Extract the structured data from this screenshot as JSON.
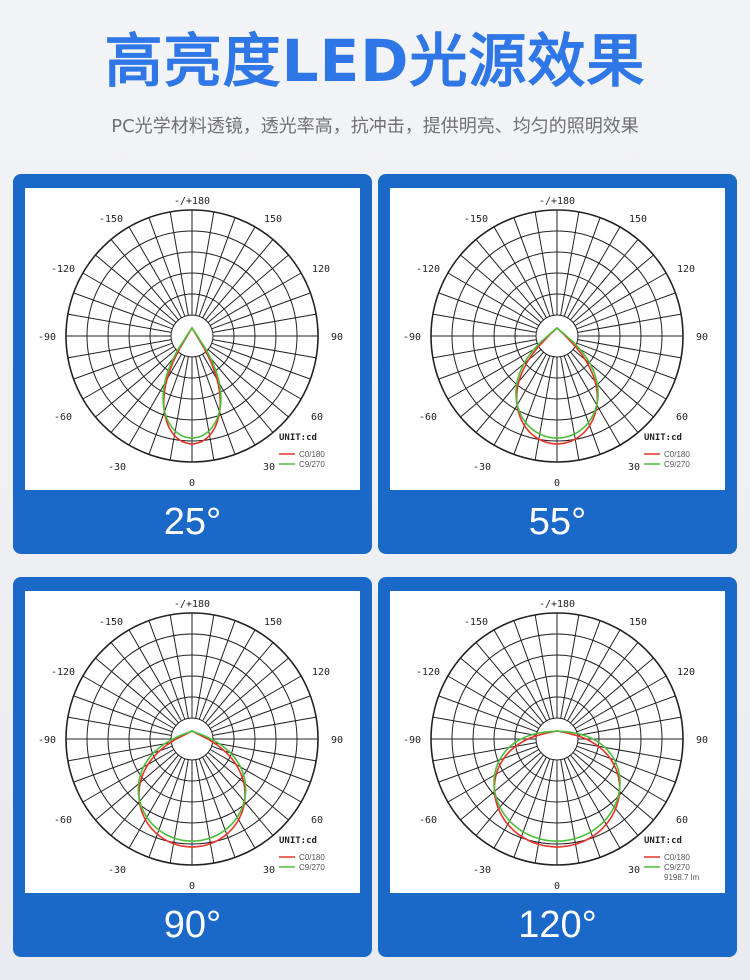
{
  "header": {
    "title": "高亮度LED光源效果",
    "subtitle": "PC光学材料透镜，透光率高，抗冲击，提供明亮、均匀的照明效果"
  },
  "colors": {
    "accent": "#2f77e6",
    "card": "#1a69c9",
    "series_c0": "#e8332b",
    "series_c9": "#4cbf3a"
  },
  "polar_labels": {
    "top": "-/+180",
    "n150": "-150",
    "p150": "150",
    "n120": "-120",
    "p120": "120",
    "n90": "-90",
    "p90": "90",
    "n60": "-60",
    "p60": "60",
    "n30": "-30",
    "p30": "30",
    "zero": "0"
  },
  "unit_label": "UNIT:cd",
  "legend": {
    "c0": "C0/180",
    "c9": "C9/270"
  },
  "cards": [
    {
      "angle": "25°",
      "beam_deg": 25
    },
    {
      "angle": "55°",
      "beam_deg": 55
    },
    {
      "angle": "90°",
      "beam_deg": 90
    },
    {
      "angle": "120°",
      "beam_deg": 120,
      "extra_note": "9198.7 lm"
    }
  ]
}
